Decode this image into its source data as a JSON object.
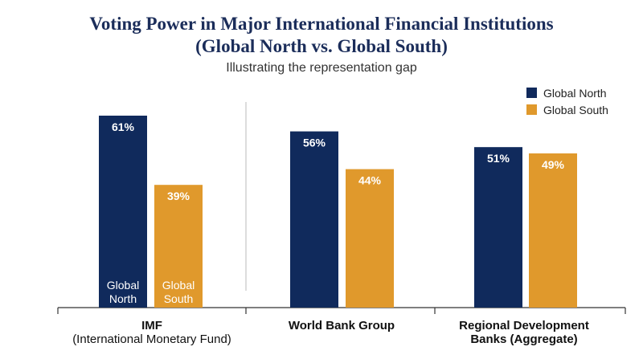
{
  "chart_data": {
    "type": "bar",
    "title": "Voting Power in Major International Financial Institutions",
    "title_line2": "(Global North vs. Global South)",
    "subtitle": "Illustrating the representation gap",
    "ylim": [
      0,
      70
    ],
    "grid": false,
    "legend_position": "top-right",
    "categories": [
      {
        "line1": "IMF",
        "line2": "(International Monetary Fund)"
      },
      {
        "line1": "World Bank Group",
        "line2": ""
      },
      {
        "line1": "Regional Development",
        "line2": "Banks (Aggregate)"
      }
    ],
    "series": [
      {
        "name": "Global North",
        "color": "#102a5c",
        "values": [
          61,
          56,
          51
        ],
        "labels": [
          "61%",
          "56%",
          "51%"
        ],
        "inbar_line1": "Global",
        "inbar_line2": "North"
      },
      {
        "name": "Global South",
        "color": "#e0992c",
        "values": [
          39,
          44,
          49
        ],
        "labels": [
          "39%",
          "44%",
          "49%"
        ],
        "inbar_line1": "Global",
        "inbar_line2": "South"
      }
    ]
  }
}
